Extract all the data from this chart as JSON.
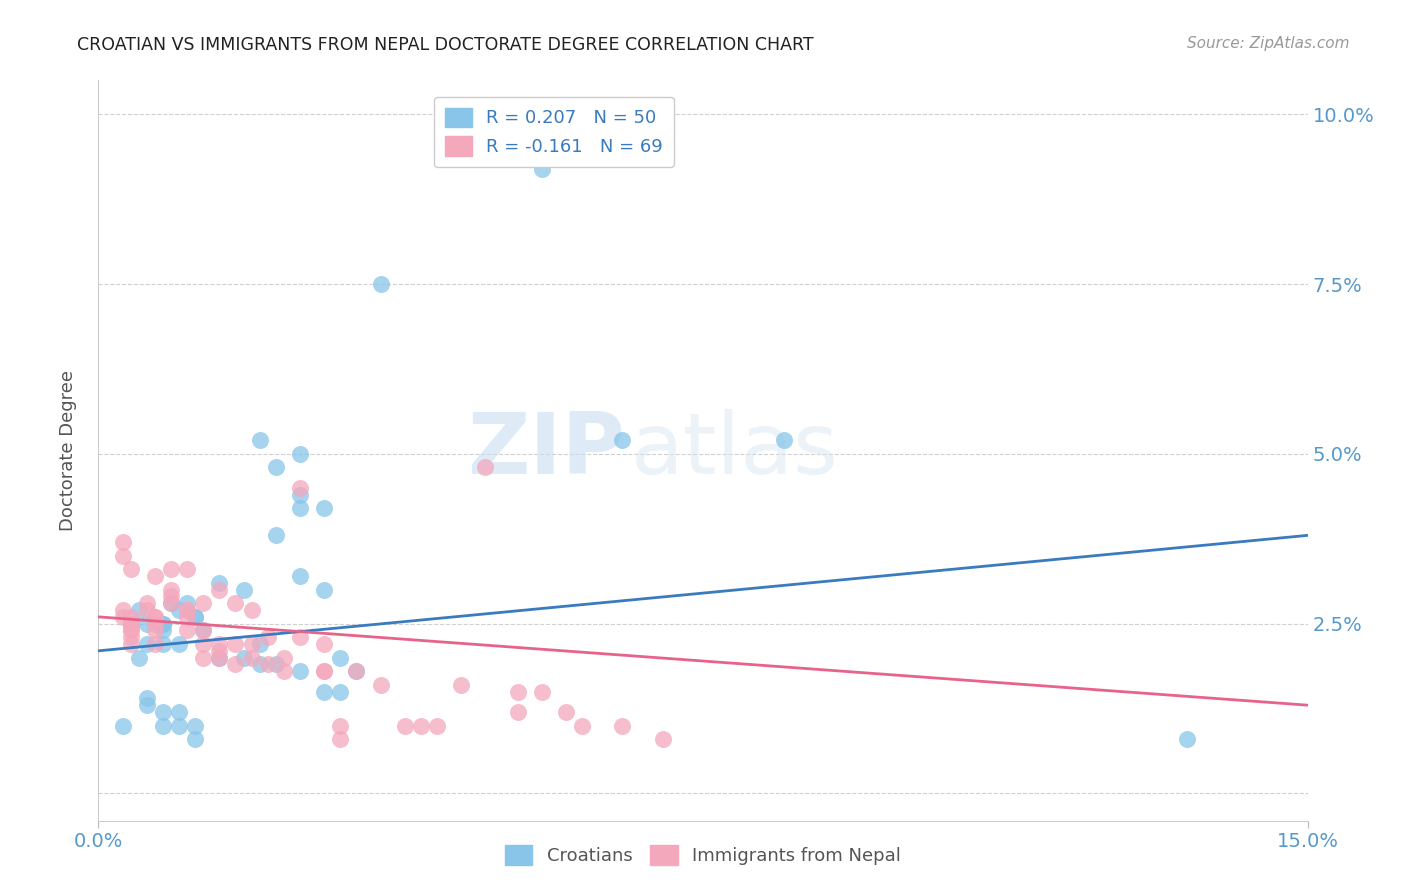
{
  "title": "CROATIAN VS IMMIGRANTS FROM NEPAL DOCTORATE DEGREE CORRELATION CHART",
  "source": "Source: ZipAtlas.com",
  "ylabel": "Doctorate Degree",
  "x_min": 0.0,
  "x_max": 0.15,
  "y_min": -0.004,
  "y_max": 0.105,
  "yticks": [
    0.0,
    0.025,
    0.05,
    0.075,
    0.1
  ],
  "ytick_labels": [
    "",
    "2.5%",
    "5.0%",
    "7.5%",
    "10.0%"
  ],
  "xticks": [
    0.0,
    0.15
  ],
  "xtick_labels": [
    "0.0%",
    "15.0%"
  ],
  "legend_blue_r": "R = 0.207",
  "legend_blue_n": "N = 50",
  "legend_pink_r": "R = -0.161",
  "legend_pink_n": "N = 69",
  "blue_color": "#88c5e8",
  "pink_color": "#f4a8bc",
  "blue_line_color": "#3a7bbf",
  "pink_line_color": "#e8638a",
  "title_color": "#222222",
  "axis_label_color": "#555555",
  "tick_color": "#5599cc",
  "watermark_zip": "ZIP",
  "watermark_atlas": "atlas",
  "blue_scatter_x": [
    0.055,
    0.035,
    0.065,
    0.005,
    0.008,
    0.008,
    0.01,
    0.012,
    0.009,
    0.011,
    0.012,
    0.013,
    0.008,
    0.005,
    0.006,
    0.006,
    0.008,
    0.01,
    0.015,
    0.018,
    0.02,
    0.022,
    0.025,
    0.025,
    0.028,
    0.025,
    0.022,
    0.025,
    0.028,
    0.03,
    0.032,
    0.028,
    0.03,
    0.025,
    0.02,
    0.022,
    0.018,
    0.015,
    0.02,
    0.01,
    0.008,
    0.006,
    0.006,
    0.008,
    0.01,
    0.012,
    0.012,
    0.135,
    0.085,
    0.003
  ],
  "blue_scatter_y": [
    0.092,
    0.075,
    0.052,
    0.027,
    0.025,
    0.025,
    0.022,
    0.026,
    0.028,
    0.028,
    0.026,
    0.024,
    0.022,
    0.02,
    0.022,
    0.025,
    0.024,
    0.027,
    0.031,
    0.03,
    0.052,
    0.048,
    0.044,
    0.042,
    0.042,
    0.05,
    0.038,
    0.032,
    0.03,
    0.02,
    0.018,
    0.015,
    0.015,
    0.018,
    0.019,
    0.019,
    0.02,
    0.02,
    0.022,
    0.012,
    0.012,
    0.014,
    0.013,
    0.01,
    0.01,
    0.01,
    0.008,
    0.008,
    0.052,
    0.01
  ],
  "pink_scatter_x": [
    0.003,
    0.003,
    0.004,
    0.004,
    0.004,
    0.004,
    0.004,
    0.004,
    0.004,
    0.004,
    0.004,
    0.006,
    0.006,
    0.007,
    0.007,
    0.007,
    0.007,
    0.007,
    0.007,
    0.009,
    0.009,
    0.009,
    0.009,
    0.011,
    0.011,
    0.011,
    0.011,
    0.011,
    0.013,
    0.013,
    0.013,
    0.013,
    0.015,
    0.015,
    0.015,
    0.015,
    0.017,
    0.017,
    0.017,
    0.019,
    0.019,
    0.019,
    0.021,
    0.021,
    0.023,
    0.023,
    0.025,
    0.025,
    0.028,
    0.028,
    0.028,
    0.03,
    0.03,
    0.032,
    0.035,
    0.038,
    0.04,
    0.042,
    0.045,
    0.048,
    0.052,
    0.052,
    0.055,
    0.058,
    0.06,
    0.065,
    0.07,
    0.003,
    0.003
  ],
  "pink_scatter_y": [
    0.027,
    0.026,
    0.026,
    0.025,
    0.025,
    0.025,
    0.024,
    0.024,
    0.023,
    0.022,
    0.033,
    0.028,
    0.027,
    0.026,
    0.026,
    0.025,
    0.024,
    0.022,
    0.032,
    0.03,
    0.029,
    0.028,
    0.033,
    0.027,
    0.027,
    0.026,
    0.024,
    0.033,
    0.028,
    0.024,
    0.022,
    0.02,
    0.03,
    0.022,
    0.021,
    0.02,
    0.028,
    0.022,
    0.019,
    0.027,
    0.022,
    0.02,
    0.023,
    0.019,
    0.02,
    0.018,
    0.045,
    0.023,
    0.018,
    0.022,
    0.018,
    0.01,
    0.008,
    0.018,
    0.016,
    0.01,
    0.01,
    0.01,
    0.016,
    0.048,
    0.015,
    0.012,
    0.015,
    0.012,
    0.01,
    0.01,
    0.008,
    0.037,
    0.035
  ],
  "blue_line_x": [
    0.0,
    0.15
  ],
  "blue_line_y": [
    0.021,
    0.038
  ],
  "pink_line_x": [
    0.0,
    0.15
  ],
  "pink_line_y": [
    0.026,
    0.013
  ],
  "grid_color": "#d0d0d0",
  "background_color": "#ffffff"
}
